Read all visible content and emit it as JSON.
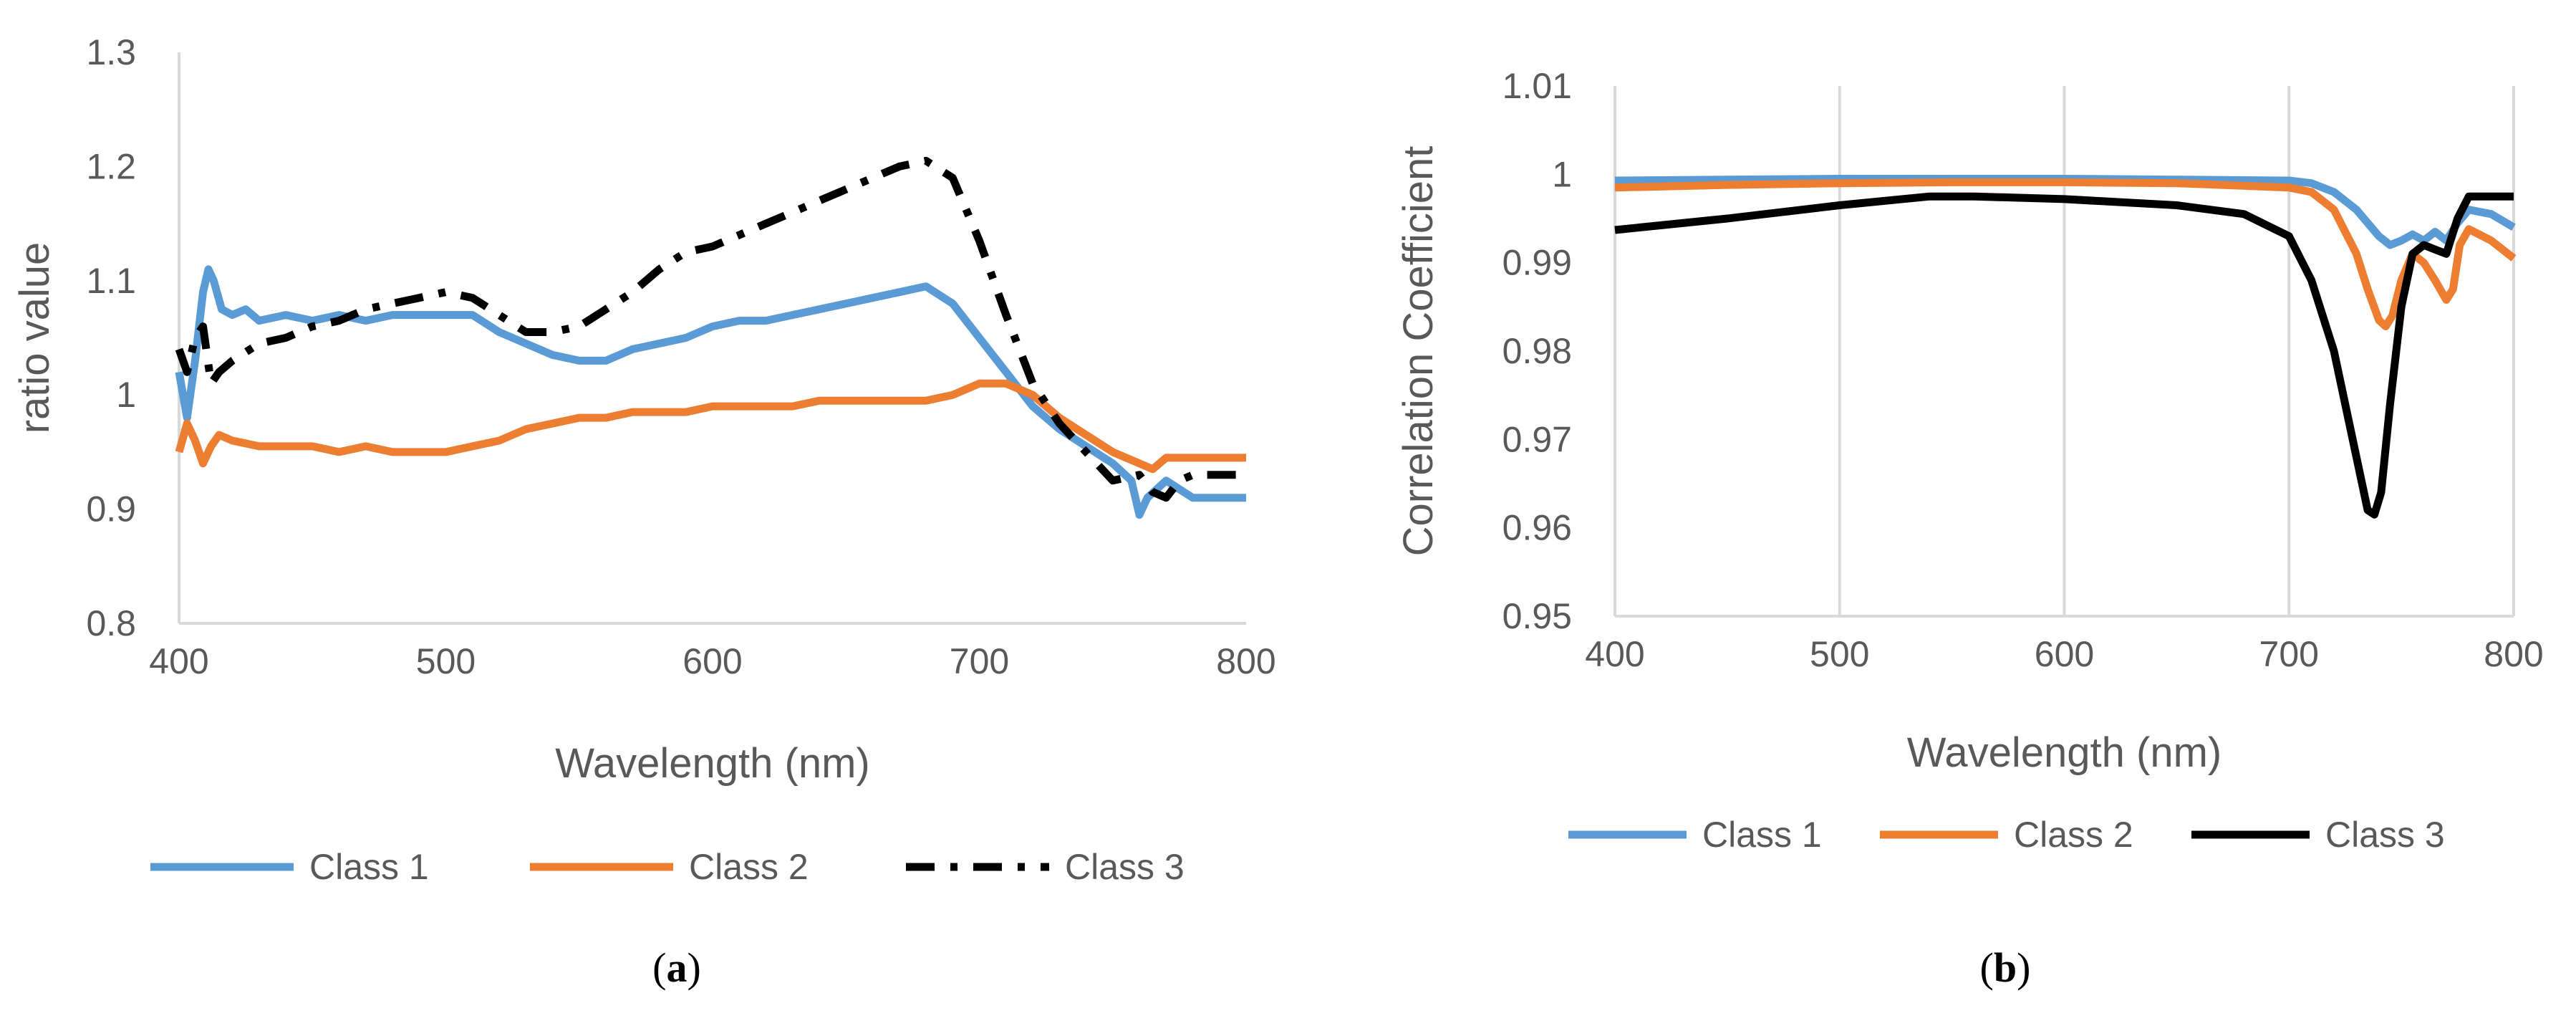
{
  "chart_data": [
    {
      "id": "a",
      "type": "line",
      "panel_label": "(a)",
      "panel_letter": "a",
      "title": "",
      "xlabel": "Wavelength (nm)",
      "ylabel": "ratio value",
      "xlim": [
        400,
        800
      ],
      "ylim": [
        0.8,
        1.3
      ],
      "xticks": [
        400,
        500,
        600,
        700,
        800
      ],
      "xtick_labels": [
        "400",
        "500",
        "600",
        "700",
        "800"
      ],
      "yticks": [
        0.8,
        0.9,
        1.0,
        1.1,
        1.2,
        1.3
      ],
      "ytick_labels": [
        "0.8",
        "0.9",
        "1",
        "1.1",
        "1.2",
        "1.3"
      ],
      "grid": false,
      "legend_position": "bottom",
      "series": [
        {
          "name": "Class 1",
          "color": "#5b9bd5",
          "dash": "solid",
          "x": [
            400,
            403,
            406,
            409,
            411,
            413,
            416,
            420,
            425,
            430,
            440,
            450,
            460,
            470,
            480,
            490,
            500,
            510,
            520,
            530,
            540,
            550,
            560,
            570,
            580,
            590,
            600,
            610,
            620,
            630,
            640,
            650,
            660,
            670,
            680,
            690,
            700,
            710,
            720,
            730,
            740,
            750,
            757,
            760,
            763,
            770,
            780,
            790,
            800
          ],
          "y": [
            1.02,
            0.98,
            1.03,
            1.09,
            1.11,
            1.1,
            1.075,
            1.07,
            1.075,
            1.065,
            1.07,
            1.065,
            1.07,
            1.065,
            1.07,
            1.07,
            1.07,
            1.07,
            1.055,
            1.045,
            1.035,
            1.03,
            1.03,
            1.04,
            1.045,
            1.05,
            1.06,
            1.065,
            1.065,
            1.07,
            1.075,
            1.08,
            1.085,
            1.09,
            1.095,
            1.08,
            1.05,
            1.02,
            0.99,
            0.97,
            0.955,
            0.94,
            0.925,
            0.895,
            0.91,
            0.925,
            0.91,
            0.91,
            0.91
          ]
        },
        {
          "name": "Class 2",
          "color": "#ed7d31",
          "dash": "solid",
          "x": [
            400,
            403,
            406,
            409,
            412,
            415,
            420,
            430,
            440,
            450,
            460,
            470,
            480,
            490,
            500,
            510,
            520,
            530,
            540,
            550,
            560,
            570,
            580,
            590,
            600,
            610,
            620,
            630,
            640,
            650,
            660,
            670,
            680,
            690,
            700,
            705,
            710,
            720,
            730,
            740,
            750,
            760,
            765,
            770,
            780,
            790,
            800
          ],
          "y": [
            0.95,
            0.975,
            0.96,
            0.94,
            0.955,
            0.965,
            0.96,
            0.955,
            0.955,
            0.955,
            0.95,
            0.955,
            0.95,
            0.95,
            0.95,
            0.955,
            0.96,
            0.97,
            0.975,
            0.98,
            0.98,
            0.985,
            0.985,
            0.985,
            0.99,
            0.99,
            0.99,
            0.99,
            0.995,
            0.995,
            0.995,
            0.995,
            0.995,
            1.0,
            1.01,
            1.01,
            1.01,
            1.0,
            0.98,
            0.965,
            0.95,
            0.94,
            0.935,
            0.945,
            0.945,
            0.945,
            0.945
          ]
        },
        {
          "name": "Class 3",
          "color": "#000000",
          "dash": "dashdot",
          "x": [
            400,
            403,
            406,
            409,
            412,
            415,
            420,
            430,
            440,
            450,
            460,
            470,
            480,
            490,
            500,
            510,
            520,
            530,
            540,
            550,
            560,
            570,
            580,
            590,
            600,
            610,
            620,
            630,
            640,
            650,
            660,
            670,
            680,
            690,
            700,
            710,
            720,
            730,
            740,
            750,
            760,
            765,
            770,
            775,
            780,
            790,
            800
          ],
          "y": [
            1.04,
            1.02,
            1.05,
            1.06,
            1.01,
            1.02,
            1.03,
            1.045,
            1.05,
            1.06,
            1.065,
            1.075,
            1.08,
            1.085,
            1.09,
            1.085,
            1.07,
            1.055,
            1.055,
            1.06,
            1.075,
            1.09,
            1.11,
            1.125,
            1.13,
            1.14,
            1.15,
            1.16,
            1.17,
            1.18,
            1.19,
            1.2,
            1.205,
            1.19,
            1.135,
            1.07,
            1.01,
            0.975,
            0.95,
            0.925,
            0.93,
            0.915,
            0.91,
            0.925,
            0.93,
            0.93,
            0.93
          ]
        }
      ]
    },
    {
      "id": "b",
      "type": "line",
      "panel_label": "(b)",
      "panel_letter": "b",
      "title": "",
      "xlabel": "Wavelength (nm)",
      "ylabel": "Correlation Coefficient",
      "xlim": [
        400,
        800
      ],
      "ylim": [
        0.95,
        1.01
      ],
      "xticks": [
        400,
        500,
        600,
        700,
        800
      ],
      "xtick_labels": [
        "400",
        "500",
        "600",
        "700",
        "800"
      ],
      "yticks": [
        0.95,
        0.96,
        0.97,
        0.98,
        0.99,
        1.0,
        1.01
      ],
      "ytick_labels": [
        "0.95",
        "0.96",
        "0.97",
        "0.98",
        "0.99",
        "1",
        "1.01"
      ],
      "grid": true,
      "legend_position": "bottom",
      "series": [
        {
          "name": "Class 1",
          "color": "#5b9bd5",
          "dash": "solid",
          "x": [
            400,
            450,
            500,
            550,
            600,
            650,
            700,
            710,
            720,
            730,
            740,
            745,
            750,
            755,
            760,
            765,
            770,
            775,
            780,
            790,
            800
          ],
          "y": [
            0.9993,
            0.9994,
            0.9995,
            0.9995,
            0.9995,
            0.9994,
            0.9993,
            0.999,
            0.998,
            0.996,
            0.993,
            0.992,
            0.9925,
            0.9932,
            0.9925,
            0.9935,
            0.9925,
            0.9945,
            0.996,
            0.9955,
            0.994
          ]
        },
        {
          "name": "Class 2",
          "color": "#ed7d31",
          "dash": "solid",
          "x": [
            400,
            450,
            500,
            550,
            600,
            650,
            700,
            710,
            720,
            730,
            735,
            740,
            743,
            746,
            750,
            755,
            760,
            765,
            770,
            773,
            776,
            780,
            790,
            800
          ],
          "y": [
            0.9985,
            0.9988,
            0.999,
            0.9991,
            0.9991,
            0.999,
            0.9985,
            0.998,
            0.996,
            0.991,
            0.987,
            0.9835,
            0.9828,
            0.984,
            0.988,
            0.991,
            0.99,
            0.988,
            0.9858,
            0.987,
            0.992,
            0.9938,
            0.9925,
            0.9905
          ]
        },
        {
          "name": "Class 3",
          "color": "#000000",
          "dash": "solid",
          "x": [
            400,
            450,
            500,
            540,
            560,
            600,
            650,
            680,
            700,
            710,
            720,
            725,
            730,
            735,
            738,
            741,
            745,
            750,
            755,
            760,
            765,
            770,
            775,
            780,
            790,
            800
          ],
          "y": [
            0.9937,
            0.995,
            0.9965,
            0.9975,
            0.9975,
            0.9972,
            0.9965,
            0.9955,
            0.993,
            0.988,
            0.98,
            0.974,
            0.968,
            0.962,
            0.9615,
            0.964,
            0.974,
            0.985,
            0.991,
            0.992,
            0.9915,
            0.991,
            0.995,
            0.9975,
            0.9975,
            0.9975
          ]
        }
      ]
    }
  ]
}
